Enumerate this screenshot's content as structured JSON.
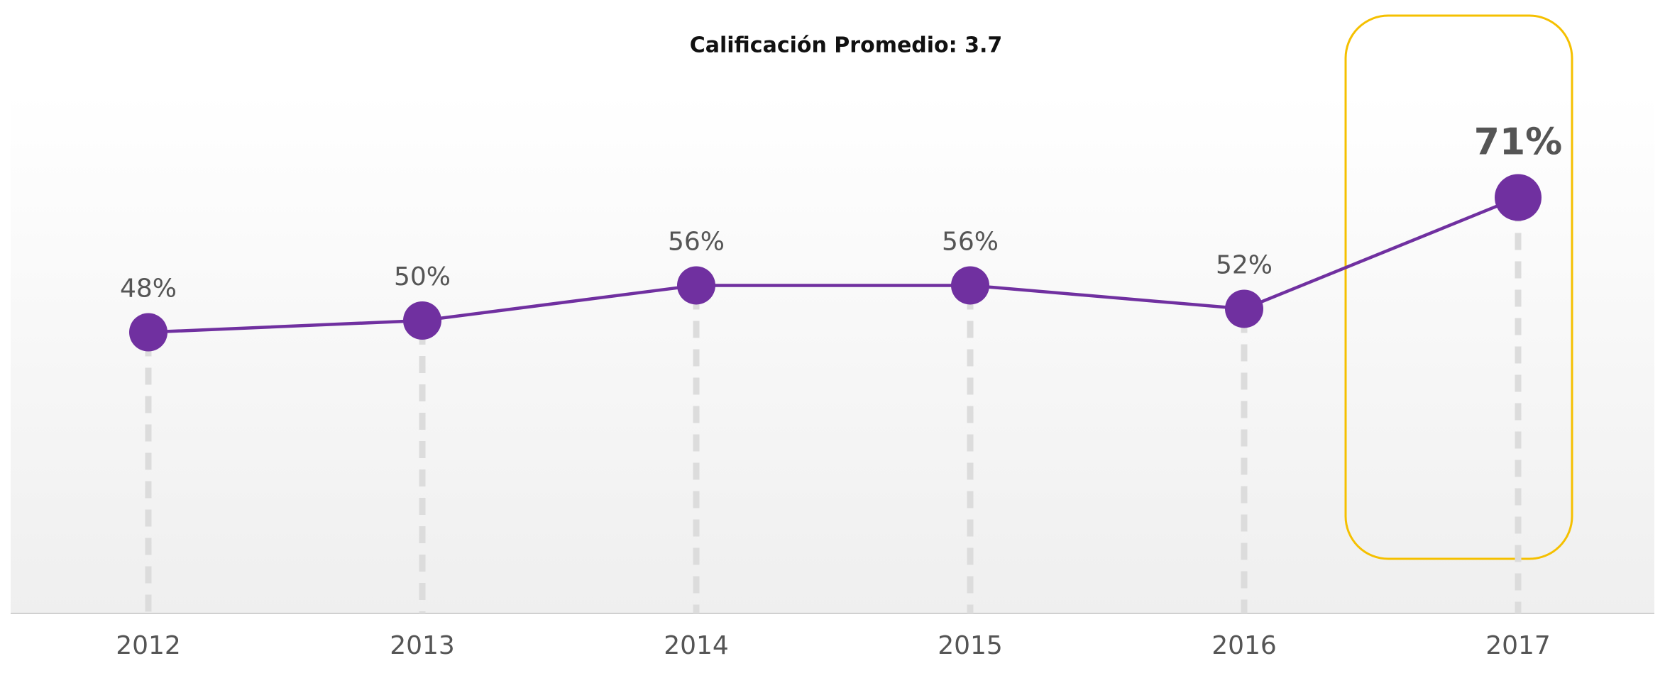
{
  "chart_data": {
    "type": "line",
    "title": "Calificación Promedio: 3.7",
    "categories": [
      "2012",
      "2013",
      "2014",
      "2015",
      "2016",
      "2017"
    ],
    "values": [
      48,
      50,
      56,
      56,
      52,
      71
    ],
    "value_labels": [
      "48%",
      "50%",
      "56%",
      "56%",
      "52%",
      "71%"
    ],
    "color": "#7030a0",
    "ylim": [
      0,
      100
    ]
  }
}
